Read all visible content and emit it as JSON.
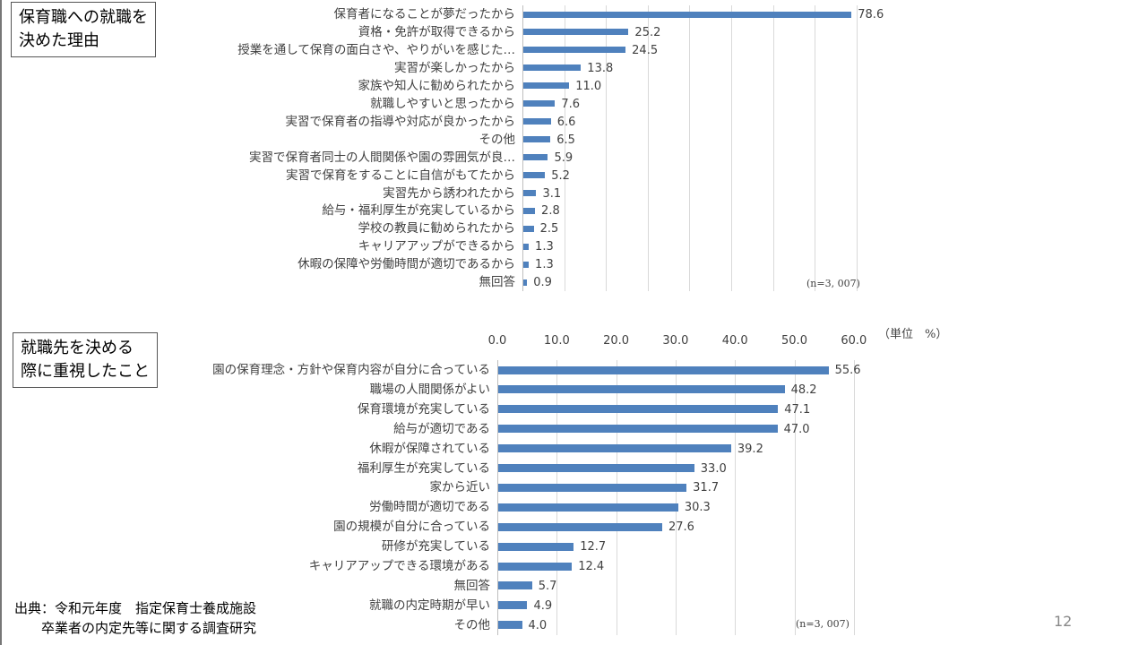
{
  "chart_data": [
    {
      "type": "bar",
      "orientation": "horizontal",
      "title": "保育職への就職を\n決めた理由",
      "note": "(n=3, 007)",
      "xlim": [
        0,
        80
      ],
      "categories": [
        "保育者になることが夢だったから",
        "資格・免許が取得できるから",
        "授業を通して保育の面白さや、やりがいを感じた…",
        "実習が楽しかったから",
        "家族や知人に勧められたから",
        "就職しやすいと思ったから",
        "実習で保育者の指導や対応が良かったから",
        "その他",
        "実習で保育者同士の人間関係や園の雰囲気が良…",
        "実習で保育をすることに自信がもてたから",
        "実習先から誘われたから",
        "給与・福利厚生が充実しているから",
        "学校の教員に勧められたから",
        "キャリアアップができるから",
        "休暇の保障や労働時間が適切であるから",
        "無回答"
      ],
      "values": [
        78.6,
        25.2,
        24.5,
        13.8,
        11.0,
        7.6,
        6.6,
        6.5,
        5.9,
        5.2,
        3.1,
        2.8,
        2.5,
        1.3,
        1.3,
        0.9
      ],
      "labels": [
        "78.6",
        "25.2",
        "24.5",
        "13.8",
        "11.0",
        "7.6",
        "6.6",
        "6.5",
        "5.9",
        "5.2",
        "3.1",
        "2.8",
        "2.5",
        "1.3",
        "1.3",
        "0.9"
      ]
    },
    {
      "type": "bar",
      "orientation": "horizontal",
      "title": "就職先を決める\n際に重視したこと",
      "note": "(n=3, 007)",
      "unit": "（単位　%）",
      "xlim": [
        0,
        60
      ],
      "ticks": [
        "0.0",
        "10.0",
        "20.0",
        "30.0",
        "40.0",
        "50.0",
        "60.0"
      ],
      "categories": [
        "園の保育理念・方針や保育内容が自分に合っている",
        "職場の人間関係がよい",
        "保育環境が充実している",
        "給与が適切である",
        "休暇が保障されている",
        "福利厚生が充実している",
        "家から近い",
        "労働時間が適切である",
        "園の規模が自分に合っている",
        "研修が充実している",
        "キャリアアップできる環境がある",
        "無回答",
        "就職の内定時期が早い",
        "その他"
      ],
      "values": [
        55.6,
        48.2,
        47.1,
        47.0,
        39.2,
        33.0,
        31.7,
        30.3,
        27.6,
        12.7,
        12.4,
        5.7,
        4.9,
        4.0
      ],
      "labels": [
        "55.6",
        "48.2",
        "47.1",
        "47.0",
        "39.2",
        "33.0",
        "31.7",
        "30.3",
        "27.6",
        "12.7",
        "12.4",
        "5.7",
        "4.9",
        "4.0"
      ]
    }
  ],
  "source": "出典：令和元年度　指定保育士養成施設\n卒業者の内定先等に関する調査研究",
  "page_number": "12",
  "colors": {
    "bar": "#4f81bd"
  }
}
